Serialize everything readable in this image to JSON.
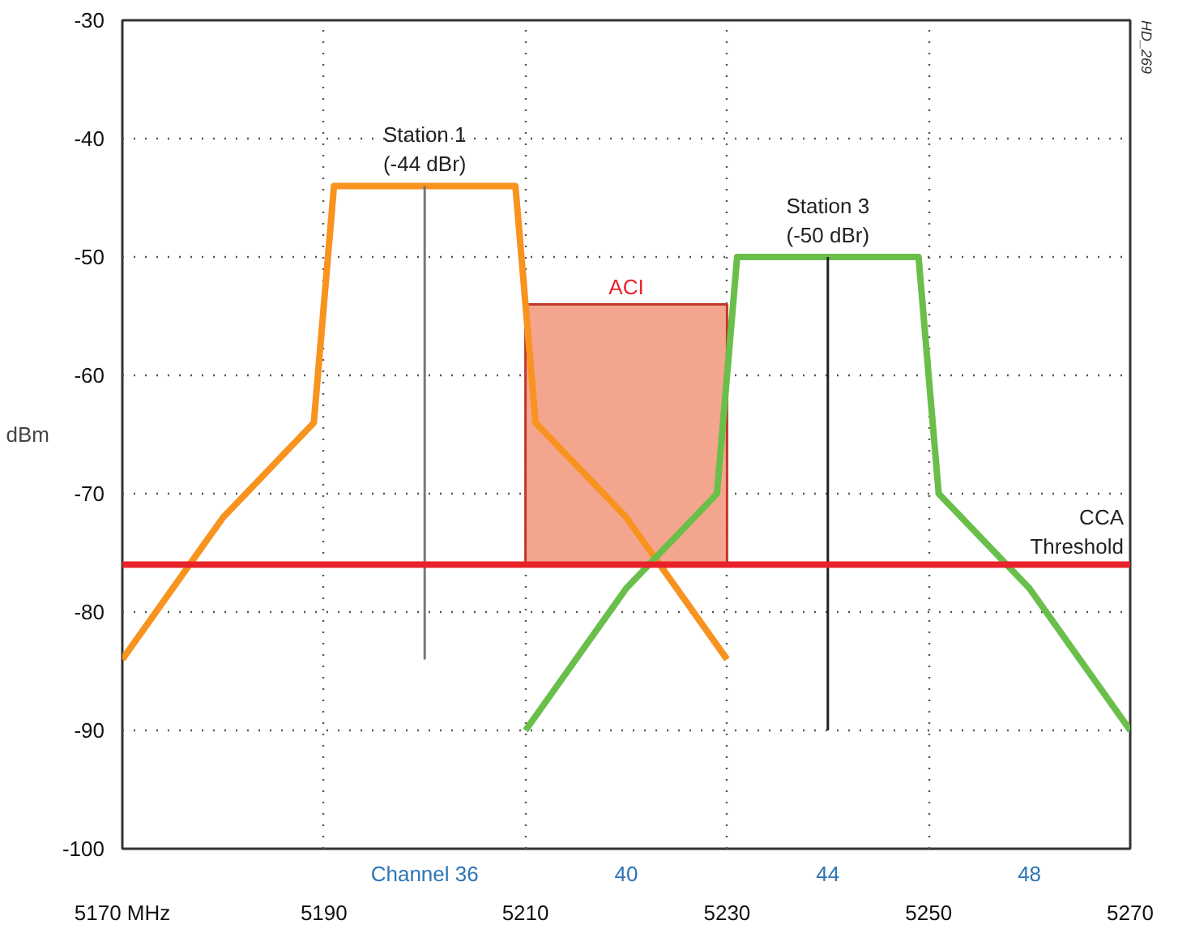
{
  "chart_data": {
    "type": "line",
    "ylabel": "dBm",
    "xlim": [
      5170,
      5270
    ],
    "ylim": [
      -100,
      -30
    ],
    "xticks": [
      {
        "value": 5170,
        "label": "5170 MHz"
      },
      5190,
      5210,
      5230,
      5250,
      5270
    ],
    "yticks": [
      -100,
      -90,
      -80,
      -70,
      -60,
      -50,
      -40,
      -30
    ],
    "grid": true,
    "line_style": "solid",
    "series": [
      {
        "type": "bar",
        "name": "ACI",
        "color": "#f4a58e",
        "x": [
          5220
        ],
        "values": [
          22
        ],
        "base": [
          -76
        ]
      },
      {
        "color": "#f7931e",
        "x": [
          5170,
          5180,
          5189,
          5191,
          5209,
          5211,
          5220,
          5230
        ],
        "values": [
          -84,
          -72,
          -64,
          -44,
          -44,
          -64,
          -72,
          -84
        ]
      },
      {
        "color": "#6abf4b",
        "x": [
          5210,
          5220,
          5229,
          5231,
          5249,
          5251,
          5260,
          5270
        ],
        "values": [
          -90,
          -78,
          -70,
          -50,
          -50,
          -70,
          -78,
          -90
        ]
      },
      {
        "color": "#777777",
        "x": [
          5200,
          5200
        ],
        "values": [
          -44,
          -84
        ]
      },
      {
        "color": "#222222",
        "x": [
          5240,
          5240
        ],
        "values": [
          -50,
          -90
        ]
      }
    ],
    "ref_lines": [
      {
        "axis": "y",
        "value": -76,
        "label": "CCA Threshold",
        "color": "#e8222a"
      }
    ],
    "annotations": [
      {
        "text": "Station 1\n(-44 dBr)",
        "x": 5200,
        "y": -44
      },
      {
        "text": "Station 3\n(-50 dBr)",
        "x": 5240,
        "y": -50
      },
      "Channel 36",
      "40",
      "44",
      "48",
      "HD_269"
    ]
  }
}
